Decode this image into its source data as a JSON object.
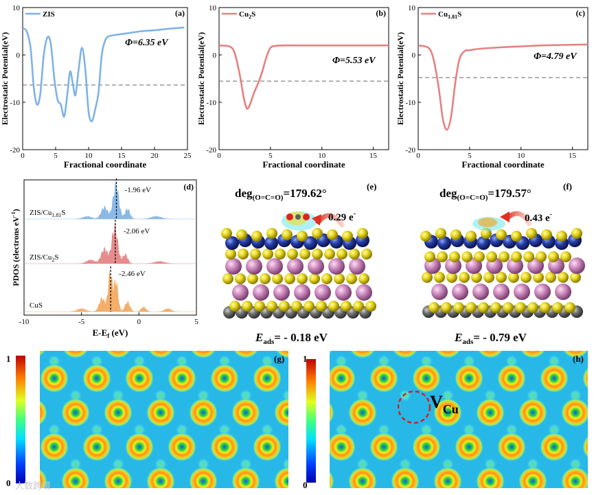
{
  "chart_data": [
    {
      "type": "line",
      "panel": "(a)",
      "legend": "ZIS",
      "xlabel": "Fractional coordinate",
      "ylabel": "Electrostatic Potential(eV)",
      "xlim": [
        0,
        25
      ],
      "ylim": [
        -20,
        10
      ],
      "xticks": [
        0,
        5,
        10,
        15,
        20,
        25
      ],
      "xtick_labels": [
        "0",
        "5",
        "10",
        "15",
        "20",
        "25"
      ],
      "yticks": [
        10,
        0,
        -10,
        -20
      ],
      "ytick_labels": [
        "10",
        "0",
        "-10",
        "-20"
      ],
      "work_function_label": "Φ=6.35 eV",
      "fermi_level": -6.35,
      "line_color": "#7fb2e5",
      "label_color": "#e58080",
      "x": [
        0,
        0.6,
        1.2,
        1.7,
        2.2,
        2.7,
        3.2,
        3.8,
        4.3,
        4.8,
        5.3,
        5.8,
        6.3,
        6.8,
        7.2,
        7.6,
        8.0,
        8.5,
        9.0,
        9.5,
        10.0,
        10.5,
        11.0,
        11.5,
        12.0,
        12.5,
        13.0,
        14.0,
        16.0,
        18.0,
        20.0,
        22.0,
        24.5
      ],
      "y": [
        5.6,
        5.0,
        1.5,
        -7.0,
        -10.5,
        -8.0,
        0.0,
        3.8,
        2.0,
        -5.0,
        -9.5,
        -10.5,
        -13.0,
        -8.0,
        -3.5,
        -6.0,
        -8.5,
        -3.0,
        1.5,
        -3.0,
        -12.0,
        -14.0,
        -11.5,
        -8.0,
        0.0,
        3.0,
        3.9,
        4.2,
        4.6,
        5.0,
        5.2,
        5.5,
        5.8
      ]
    },
    {
      "type": "line",
      "panel": "(b)",
      "legend_main": "Cu",
      "legend_sub": "2",
      "legend_tail": "S",
      "xlabel": "Fractional coordinate",
      "ylabel": "Electrostatic Potential(eV)",
      "xlim": [
        0,
        16.5
      ],
      "ylim": [
        -20,
        10
      ],
      "xticks": [
        0,
        5,
        10,
        15
      ],
      "xtick_labels": [
        "0",
        "5",
        "10",
        "15"
      ],
      "yticks": [
        10,
        0,
        -10,
        -20
      ],
      "ytick_labels": [
        "10",
        "0",
        "-10",
        "-20"
      ],
      "work_function_label": "Φ=5.53 eV",
      "fermi_level": -5.53,
      "line_color": "#e58080",
      "label_color": "#7fb2e5",
      "x": [
        0,
        1.0,
        1.5,
        2.0,
        2.4,
        2.7,
        3.0,
        3.4,
        3.8,
        4.2,
        4.6,
        5.0,
        5.5,
        6.5,
        8.0,
        10.0,
        12.0,
        14.0,
        16.5
      ],
      "y": [
        2.0,
        1.8,
        0.5,
        -4.0,
        -9.0,
        -11.3,
        -10.5,
        -8.0,
        -6.0,
        -3.5,
        -0.5,
        1.5,
        1.9,
        2.0,
        2.0,
        2.0,
        2.0,
        2.0,
        2.0
      ]
    },
    {
      "type": "line",
      "panel": "(c)",
      "legend_main": "Cu",
      "legend_sub": "1.81",
      "legend_tail": "S",
      "xlabel": "Fractional coordinate",
      "ylabel": "Electrostatic Potential(eV)",
      "xlim": [
        0,
        16.5
      ],
      "ylim": [
        -20,
        10
      ],
      "xticks": [
        0,
        5,
        10,
        15
      ],
      "xtick_labels": [
        "0",
        "5",
        "10",
        "15"
      ],
      "yticks": [
        10,
        0,
        -10,
        -20
      ],
      "ytick_labels": [
        "10",
        "0",
        "-10",
        "-20"
      ],
      "work_function_label": "Φ=4.79 eV",
      "fermi_level": -4.79,
      "line_color": "#e58080",
      "label_color": "#7fb2e5",
      "x": [
        0,
        1.0,
        1.5,
        2.0,
        2.4,
        2.8,
        3.2,
        3.6,
        4.0,
        4.5,
        5.0,
        6.0,
        8.0,
        10.0,
        12.0,
        14.0,
        16.5
      ],
      "y": [
        2.0,
        1.5,
        -1.0,
        -7.0,
        -13.5,
        -15.8,
        -13.0,
        -6.0,
        -1.0,
        0.8,
        1.0,
        1.3,
        1.6,
        1.8,
        2.0,
        2.1,
        2.2
      ]
    },
    {
      "type": "area",
      "panel": "(d)",
      "xlabel": "E-E",
      "xlabel_sub": "f",
      "xlabel_tail": " (eV)",
      "ylabel": "PDOS  (electrons eV",
      "ylabel_sup": "-1",
      "ylabel_tail": ")",
      "xlim": [
        -10,
        5
      ],
      "xticks": [
        -10,
        -5,
        0,
        5
      ],
      "xtick_labels": [
        "-10",
        "-5",
        "0",
        "5"
      ],
      "series": [
        {
          "name_main": "ZIS/Cu",
          "name_sub": "1.81",
          "name_tail": "S",
          "center_label": "-1.96 eV",
          "center": -1.96,
          "color": "#7fb2e5",
          "peaks": [
            {
              "x": -2.0,
              "h": 1.0,
              "w": 0.35
            },
            {
              "x": -3.0,
              "h": 0.35,
              "w": 0.4
            },
            {
              "x": -1.0,
              "h": 0.3,
              "w": 0.3
            },
            {
              "x": -4.5,
              "h": 0.08,
              "w": 0.5
            },
            {
              "x": 1.5,
              "h": 0.08,
              "w": 0.6
            }
          ]
        },
        {
          "name_main": "ZIS/Cu",
          "name_sub": "2",
          "name_tail": "S",
          "center_label": "-2.06 eV",
          "center": -2.06,
          "color": "#e58080",
          "peaks": [
            {
              "x": -2.1,
              "h": 1.0,
              "w": 0.35
            },
            {
              "x": -3.0,
              "h": 0.4,
              "w": 0.4
            },
            {
              "x": -1.2,
              "h": 0.25,
              "w": 0.3
            },
            {
              "x": -4.2,
              "h": 0.1,
              "w": 0.5
            },
            {
              "x": 1.8,
              "h": 0.06,
              "w": 0.6
            }
          ]
        },
        {
          "name_main": "CuS",
          "name_sub": "",
          "name_tail": "",
          "center_label": "-2.46 eV",
          "center": -2.46,
          "color": "#f2a65a",
          "peaks": [
            {
              "x": -2.5,
              "h": 1.0,
              "w": 0.25
            },
            {
              "x": -2.0,
              "h": 0.8,
              "w": 0.25
            },
            {
              "x": -3.2,
              "h": 0.35,
              "w": 0.35
            },
            {
              "x": -1.0,
              "h": 0.25,
              "w": 0.3
            },
            {
              "x": 0.4,
              "h": 0.12,
              "w": 0.3
            },
            {
              "x": -5.0,
              "h": 0.08,
              "w": 0.5
            },
            {
              "x": 2.5,
              "h": 0.08,
              "w": 0.4
            }
          ]
        }
      ]
    }
  ],
  "panel_e": {
    "label": "(e)",
    "angle_prefix": "deg",
    "angle_sub": "(O=C=O)",
    "angle_value": "=179.62°",
    "charge_label": "0.29 e",
    "charge_sup": "-",
    "energy_var": "E",
    "energy_sub": "ads",
    "energy_value": "= - 0.18 eV"
  },
  "panel_f": {
    "label": "(f)",
    "angle_prefix": "deg",
    "angle_sub": "(O=C=O)",
    "angle_value": "=179.57°",
    "charge_label": "0.43 e",
    "charge_sup": "-",
    "energy_var": "E",
    "energy_sub": "ads",
    "energy_value": "= - 0.79 eV"
  },
  "panel_g": {
    "label": "(g)",
    "colorbar_max": "1",
    "colorbar_min": "0"
  },
  "panel_h": {
    "label": "(h)",
    "colorbar_max": "1",
    "colorbar_min": "0",
    "vacancy_main": "V",
    "vacancy_sub": "Cu"
  },
  "watermark": "大数跨境",
  "colors": {
    "blue_atom": "#2840a8",
    "yellow_atom": "#e0d020",
    "pink_atom": "#d08cc0",
    "gray_atom": "#707070"
  }
}
